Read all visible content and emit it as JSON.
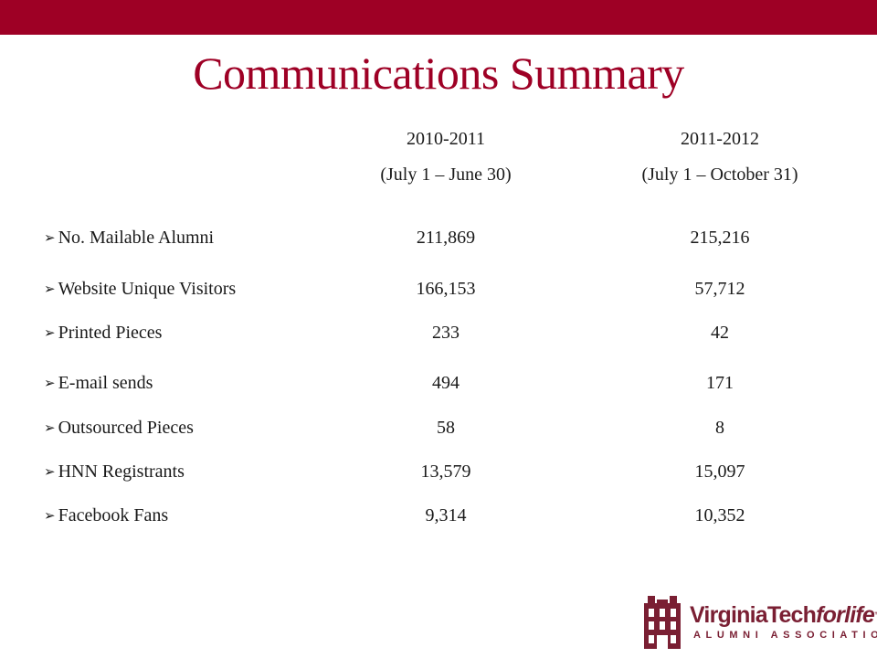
{
  "title": "Communications Summary",
  "columns": [
    {
      "year": "2010-2011",
      "range": "(July 1 – June 30)"
    },
    {
      "year": "2011-2012",
      "range": "(July 1 – October 31)"
    }
  ],
  "rows": [
    {
      "label": "No. Mailable Alumni",
      "v1": "211,869",
      "v2": "215,216"
    },
    {
      "label": "Website Unique Visitors",
      "v1": "166,153",
      "v2": "57,712"
    },
    {
      "label": "Printed Pieces",
      "v1": "233",
      "v2": "42"
    },
    {
      "label": "E-mail sends",
      "v1": "494",
      "v2": "171"
    },
    {
      "label": "Outsourced Pieces",
      "v1": "58",
      "v2": "8"
    },
    {
      "label": "HNN Registrants",
      "v1": "13,579",
      "v2": "15,097"
    },
    {
      "label": "Facebook Fans",
      "v1": "9,314",
      "v2": "10,352"
    }
  ],
  "logo": {
    "name_main": "VirginiaTech",
    "name_italic": "forlife",
    "tm": "™",
    "sub": "ALUMNI ASSOCIATION"
  },
  "colors": {
    "brand": "#9e0025",
    "logo": "#7a1f33"
  },
  "bullet_icon": "arrow-bullet-icon"
}
